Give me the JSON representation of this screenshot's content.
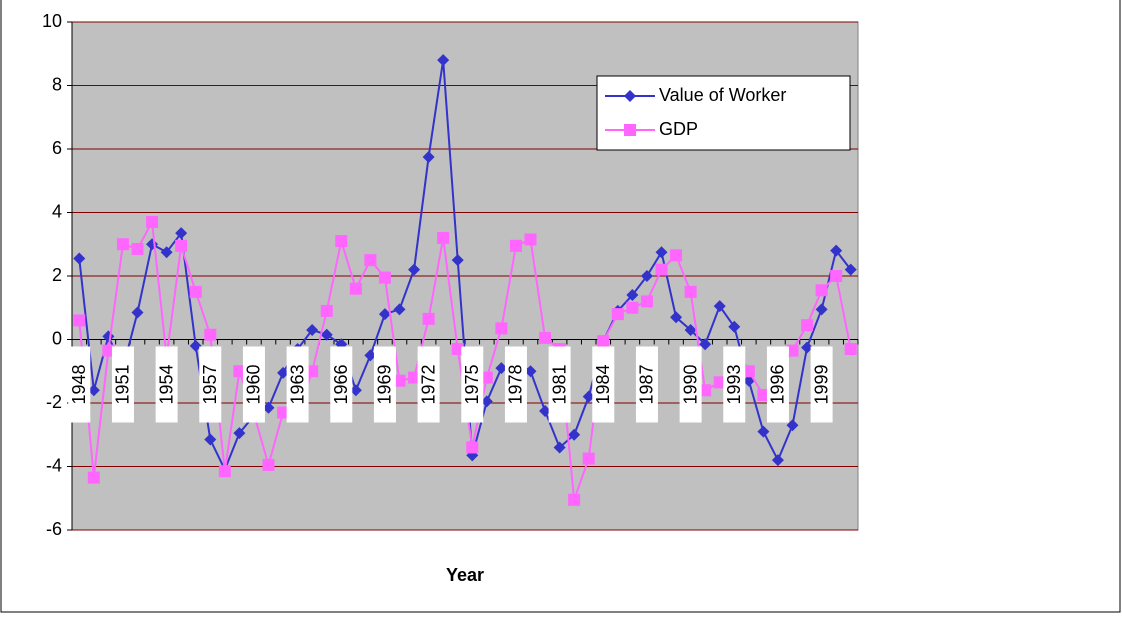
{
  "chart_data": {
    "type": "line",
    "x_label": "Year",
    "categories": [
      "1948",
      null,
      null,
      "1951",
      null,
      null,
      "1954",
      null,
      null,
      "1957",
      null,
      null,
      "1960",
      null,
      null,
      "1963",
      null,
      null,
      "1966",
      null,
      null,
      "1969",
      null,
      null,
      "1972",
      null,
      null,
      "1975",
      null,
      null,
      "1978",
      null,
      null,
      "1981",
      null,
      null,
      "1984",
      null,
      null,
      "1987",
      null,
      null,
      "1990",
      null,
      null,
      "1993",
      null,
      null,
      "1996",
      null,
      null,
      "1999",
      null,
      null
    ],
    "series": [
      {
        "name": "Value of Worker",
        "color": "#3333cc",
        "marker": "diamond",
        "values": [
          2.55,
          -1.6,
          0.1,
          -0.9,
          0.85,
          3.0,
          2.75,
          3.35,
          -0.2,
          -3.15,
          -4.1,
          -2.95,
          -2.4,
          -2.15,
          -1.05,
          -0.3,
          0.3,
          0.15,
          -0.15,
          -1.6,
          -0.5,
          0.8,
          0.95,
          2.2,
          5.75,
          8.8,
          2.5,
          -3.65,
          -1.95,
          -0.9,
          -0.7,
          -1.0,
          -2.25,
          -3.4,
          -3.0,
          -1.8,
          -0.05,
          0.9,
          1.4,
          2.0,
          2.75,
          0.7,
          0.3,
          -0.15,
          1.05,
          0.4,
          -1.3,
          -2.9,
          -3.8,
          -2.7,
          -0.25,
          0.95,
          2.8,
          2.2
        ]
      },
      {
        "name": "GDP",
        "color": "#ff66ff",
        "marker": "square",
        "values": [
          0.6,
          -4.35,
          -0.35,
          3.0,
          2.85,
          3.7,
          -0.55,
          2.95,
          1.5,
          0.15,
          -4.15,
          -1.0,
          -2.35,
          -3.95,
          -2.3,
          -2.3,
          -1.0,
          0.9,
          3.1,
          1.6,
          2.5,
          1.95,
          -1.3,
          -1.2,
          0.65,
          3.2,
          -0.3,
          -3.4,
          -1.2,
          0.35,
          2.95,
          3.15,
          0.05,
          -0.3,
          -5.05,
          -3.75,
          -0.05,
          0.8,
          1.0,
          1.2,
          2.2,
          2.65,
          1.5,
          -1.6,
          -1.35,
          -1.2,
          -1.0,
          -1.75,
          -1.1,
          -0.35,
          0.45,
          1.55,
          2.0,
          -0.3
        ]
      }
    ],
    "ylim": [
      -6,
      10
    ],
    "yticks": [
      -6,
      -4,
      -2,
      0,
      2,
      4,
      6,
      8,
      10
    ],
    "grid": true,
    "grid_color": "#800000",
    "plot_background": "#c0c0c0",
    "legend": "upper right"
  }
}
